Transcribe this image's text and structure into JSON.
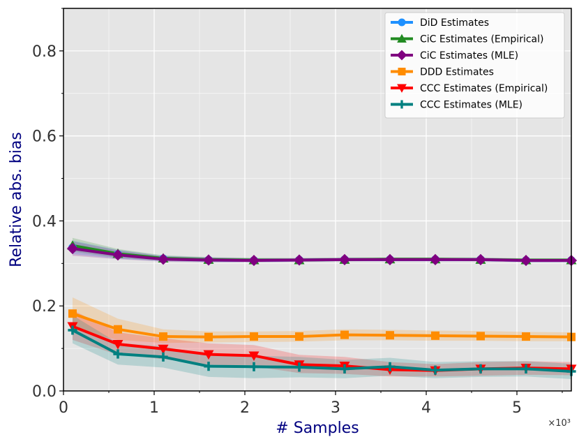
{
  "chart_data": {
    "type": "line",
    "xlabel": "# Samples",
    "ylabel": "Relative abs. bias",
    "x_multiplier": "×10³",
    "xlim": [
      0,
      5.6
    ],
    "ylim": [
      0,
      0.9
    ],
    "xticks": [
      0,
      1,
      2,
      3,
      4,
      5
    ],
    "xtick_labels": [
      "0",
      "1",
      "2",
      "3",
      "4",
      "5"
    ],
    "yticks": [
      0,
      0.2,
      0.4,
      0.6,
      0.8
    ],
    "ytick_labels": [
      "0.0",
      "0.2",
      "0.4",
      "0.6",
      "0.8"
    ],
    "grid": true,
    "legend_position": "top-right",
    "x": [
      0.1,
      0.6,
      1.1,
      1.6,
      2.1,
      2.6,
      3.1,
      3.6,
      4.1,
      4.6,
      5.1,
      5.6
    ],
    "series": [
      {
        "name": "DiD Estimates",
        "color": "#1e90ff",
        "marker": "circle",
        "values": [
          0.337,
          0.321,
          0.311,
          0.308,
          0.307,
          0.308,
          0.309,
          0.309,
          0.309,
          0.309,
          0.307,
          0.307
        ],
        "lower": [
          0.322,
          0.311,
          0.305,
          0.303,
          0.303,
          0.304,
          0.305,
          0.305,
          0.305,
          0.305,
          0.303,
          0.303
        ],
        "upper": [
          0.354,
          0.332,
          0.318,
          0.314,
          0.312,
          0.312,
          0.313,
          0.313,
          0.313,
          0.313,
          0.311,
          0.311
        ]
      },
      {
        "name": "CiC Estimates (Empirical)",
        "color": "#228b22",
        "marker": "triangle-up",
        "values": [
          0.342,
          0.323,
          0.312,
          0.309,
          0.308,
          0.308,
          0.309,
          0.31,
          0.31,
          0.309,
          0.308,
          0.308
        ],
        "lower": [
          0.328,
          0.313,
          0.306,
          0.304,
          0.304,
          0.304,
          0.305,
          0.306,
          0.306,
          0.305,
          0.304,
          0.304
        ],
        "upper": [
          0.36,
          0.334,
          0.319,
          0.315,
          0.313,
          0.313,
          0.314,
          0.314,
          0.314,
          0.314,
          0.312,
          0.312
        ]
      },
      {
        "name": "CiC Estimates (MLE)",
        "color": "#800080",
        "marker": "diamond",
        "values": [
          0.335,
          0.32,
          0.31,
          0.308,
          0.307,
          0.308,
          0.309,
          0.309,
          0.309,
          0.309,
          0.307,
          0.307
        ],
        "lower": [
          0.318,
          0.31,
          0.304,
          0.303,
          0.303,
          0.304,
          0.305,
          0.305,
          0.305,
          0.305,
          0.303,
          0.303
        ],
        "upper": [
          0.352,
          0.331,
          0.317,
          0.314,
          0.312,
          0.312,
          0.313,
          0.313,
          0.313,
          0.313,
          0.311,
          0.311
        ]
      },
      {
        "name": "DDD Estimates",
        "color": "#ff8c00",
        "marker": "square",
        "values": [
          0.182,
          0.145,
          0.128,
          0.127,
          0.128,
          0.128,
          0.132,
          0.131,
          0.13,
          0.129,
          0.128,
          0.127
        ],
        "lower": [
          0.145,
          0.12,
          0.113,
          0.114,
          0.115,
          0.116,
          0.119,
          0.119,
          0.118,
          0.118,
          0.117,
          0.117
        ],
        "upper": [
          0.22,
          0.17,
          0.145,
          0.14,
          0.14,
          0.141,
          0.145,
          0.144,
          0.142,
          0.141,
          0.139,
          0.138
        ]
      },
      {
        "name": "CCC Estimates (Empirical)",
        "color": "#ff0000",
        "marker": "triangle-down",
        "values": [
          0.152,
          0.11,
          0.099,
          0.086,
          0.083,
          0.062,
          0.059,
          0.05,
          0.048,
          0.052,
          0.054,
          0.052
        ],
        "lower": [
          0.12,
          0.085,
          0.075,
          0.062,
          0.058,
          0.042,
          0.04,
          0.034,
          0.034,
          0.036,
          0.038,
          0.037
        ],
        "upper": [
          0.19,
          0.138,
          0.124,
          0.112,
          0.108,
          0.085,
          0.08,
          0.068,
          0.063,
          0.068,
          0.07,
          0.068
        ]
      },
      {
        "name": "CCC Estimates (MLE)",
        "color": "#008080",
        "marker": "plus",
        "values": [
          0.143,
          0.087,
          0.08,
          0.058,
          0.057,
          0.056,
          0.052,
          0.057,
          0.049,
          0.052,
          0.052,
          0.046
        ],
        "lower": [
          0.112,
          0.062,
          0.055,
          0.033,
          0.03,
          0.032,
          0.03,
          0.036,
          0.03,
          0.033,
          0.034,
          0.028
        ],
        "upper": [
          0.178,
          0.113,
          0.105,
          0.084,
          0.083,
          0.08,
          0.073,
          0.078,
          0.068,
          0.07,
          0.07,
          0.064
        ]
      }
    ]
  }
}
